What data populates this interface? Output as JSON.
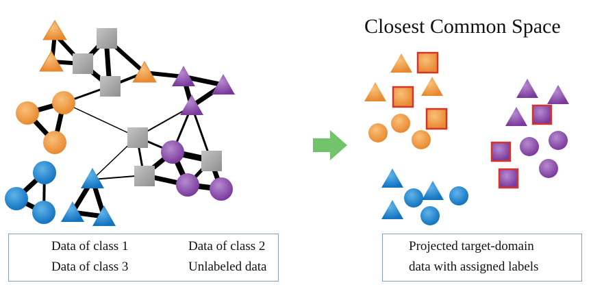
{
  "title": "Closest Common Space",
  "colors": {
    "class1": "#f0993f",
    "class2": "#8a4aa8",
    "class3": "#1e86cf",
    "unlabeled": "#aaaaaa",
    "projected_border": "#d6332a",
    "arrow": "#73c36a",
    "legend_border": "#7fa0c8"
  },
  "legend_left": {
    "class1": "Data of class 1",
    "class2": "Data of class 2",
    "class3": "Data of class 3",
    "unlabeled": "Unlabeled data"
  },
  "legend_right": {
    "line1": "Projected target-domain",
    "line2": "data with assigned labels"
  }
}
